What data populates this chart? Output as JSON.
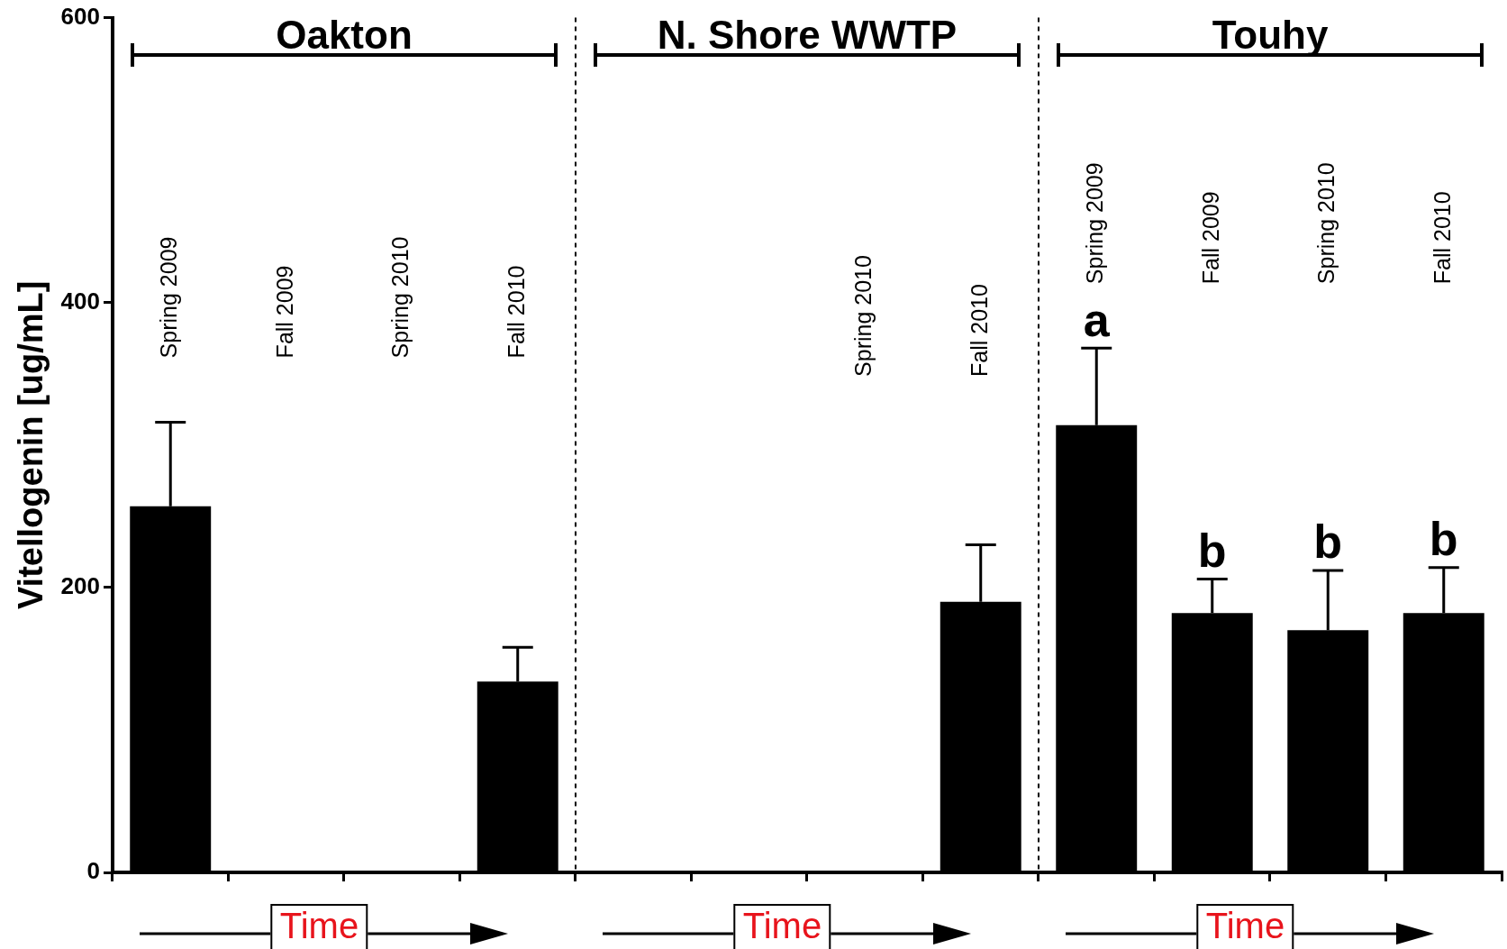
{
  "chart_data": {
    "type": "bar",
    "ylabel": "Vitellogenin [ug/mL]",
    "categories": [
      "Spring 2009",
      "Fall 2009",
      "Spring 2010",
      "Fall 2010",
      null,
      null,
      "Spring 2010",
      "Fall 2010",
      "Spring 2009",
      "Fall 2009",
      "Spring 2010",
      "Fall 2010"
    ],
    "values": [
      257,
      null,
      null,
      134,
      null,
      null,
      null,
      190,
      314,
      182,
      170,
      182
    ],
    "errors": [
      [
        257,
        316
      ],
      null,
      null,
      [
        134,
        158
      ],
      null,
      null,
      null,
      [
        190,
        230
      ],
      [
        314,
        368
      ],
      [
        182,
        206
      ],
      [
        170,
        212
      ],
      [
        182,
        214
      ]
    ],
    "color": "#000000",
    "ylim": [
      0,
      600
    ],
    "yticks": [
      0,
      200,
      400,
      600
    ],
    "grid": false,
    "legend": false,
    "tick_labels": "y",
    "annotations": [
      "Oakton",
      "N. Shore WWTP",
      "Touhy",
      "a",
      "b",
      "b",
      "b",
      "Time",
      "Time",
      "Time"
    ]
  }
}
